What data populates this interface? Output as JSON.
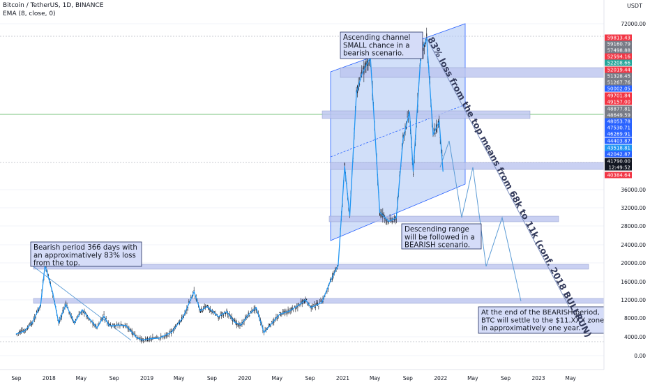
{
  "header": {
    "title": "Bitcoin / TetherUS, 1D, BINANCE",
    "indicator": "EMA (8, close, 0)",
    "currency": "USDT"
  },
  "colors": {
    "up": "#131722",
    "ema": "#2196f3",
    "channel_fill": "#b3c9f5",
    "channel_edge": "#2962ff",
    "zone_fill": "#bcc4ef",
    "annotation_fill": "#d5dcf8",
    "annotation_border": "#1e2b5c",
    "projection": "#5b9bd5",
    "green_line": "#4caf50",
    "axis_text": "#131722"
  },
  "chart_data": {
    "type": "line",
    "series": [
      {
        "x": [
          "2017-09-01",
          "2017-10-01",
          "2017-11-01",
          "2017-12-01",
          "2017-12-17",
          "2018-01-15",
          "2018-02-06",
          "2018-03-05",
          "2018-04-06",
          "2018-05-05",
          "2018-06-29",
          "2018-07-25",
          "2018-08-14",
          "2018-09-15",
          "2018-10-15",
          "2018-11-25",
          "2018-12-15",
          "2019-01-15",
          "2019-02-15",
          "2019-04-02",
          "2019-05-15",
          "2019-06-26",
          "2019-07-20",
          "2019-08-15",
          "2019-09-25",
          "2019-10-26",
          "2019-11-25",
          "2019-12-18",
          "2020-01-15",
          "2020-02-13",
          "2020-03-13",
          "2020-04-15",
          "2020-05-10",
          "2020-06-15",
          "2020-07-25",
          "2020-08-15",
          "2020-09-05",
          "2020-10-15",
          "2020-11-15",
          "2020-12-15",
          "2021-01-08",
          "2021-01-27",
          "2021-02-21",
          "2021-03-13",
          "2021-04-14",
          "2021-05-19",
          "2021-06-22",
          "2021-07-20",
          "2021-08-14",
          "2021-09-07",
          "2021-09-21",
          "2021-10-20",
          "2021-11-10",
          "2021-12-04",
          "2021-12-27",
          "2022-01-10"
        ],
        "y": [
          4600,
          5200,
          7100,
          11000,
          19500,
          13500,
          7000,
          11000,
          6900,
          9800,
          5900,
          8400,
          6300,
          6500,
          6400,
          3800,
          3300,
          3600,
          3700,
          4900,
          8000,
          13800,
          9600,
          10500,
          8300,
          9400,
          7100,
          6500,
          8700,
          10300,
          4900,
          7100,
          8800,
          9500,
          11000,
          12000,
          10300,
          11400,
          16000,
          19500,
          41000,
          30200,
          57000,
          61000,
          64800,
          31000,
          29000,
          29800,
          47000,
          52900,
          40000,
          66000,
          68800,
          48000,
          50800,
          40000
        ],
        "name": ""
      }
    ],
    "x_ticks": [
      "Sep",
      "2018",
      "May",
      "Sep",
      "2019",
      "May",
      "Sep",
      "2020",
      "May",
      "Sep",
      "2021",
      "May",
      "Sep",
      "2022",
      "May",
      "Sep",
      "2023",
      "May"
    ],
    "y_ticks": [
      "0.00",
      "4000.00",
      "8000.00",
      "12000.00",
      "16000.00",
      "20000.00",
      "24000.00",
      "28000.00",
      "32000.00",
      "36000.00",
      "72000.00"
    ],
    "ylim": [
      -1500,
      76500
    ],
    "price_labels": [
      {
        "text": "59813.43",
        "color": "#f23645"
      },
      {
        "text": "59160.79",
        "color": "#787b86"
      },
      {
        "text": "57498.88",
        "color": "#787b86"
      },
      {
        "text": "52594.16",
        "color": "#f23645"
      },
      {
        "text": "52208.66",
        "color": "#26a69a"
      },
      {
        "text": "52019.44",
        "color": "#f23645"
      },
      {
        "text": "51328.45",
        "color": "#787b86"
      },
      {
        "text": "51267.76",
        "color": "#787b86"
      },
      {
        "text": "50002.05",
        "color": "#2962ff"
      },
      {
        "text": "49701.84",
        "color": "#f23645"
      },
      {
        "text": "49157.00",
        "color": "#f23645"
      },
      {
        "text": "48877.81",
        "color": "#787b86"
      },
      {
        "text": "48649.59",
        "color": "#787b86"
      },
      {
        "text": "48053.78",
        "color": "#2962ff"
      },
      {
        "text": "47530.71",
        "color": "#2962ff"
      },
      {
        "text": "46269.91",
        "color": "#2962ff"
      },
      {
        "text": "44403.87",
        "color": "#2962ff"
      },
      {
        "text": "43518.81",
        "color": "#2196f3"
      },
      {
        "text": "42042.87",
        "color": "#2962ff"
      },
      {
        "text": "41790.00",
        "color": "#131722"
      },
      {
        "text": "12:49:52",
        "color": "#131722"
      },
      {
        "text": "40384.64",
        "color": "#f23645"
      }
    ],
    "annotations": [
      {
        "id": "bearish-period",
        "lines": [
          "Bearish period 366 days with",
          "an approximatively 83% loss",
          "from the top."
        ]
      },
      {
        "id": "ascending-channel",
        "lines": [
          "Ascending channel",
          "SMALL chance in a",
          "bearish scenario."
        ]
      },
      {
        "id": "descending-range",
        "lines": [
          "Descending range",
          "will be followed in a",
          "BEARISH scenario."
        ]
      },
      {
        "id": "end-bearish",
        "lines": [
          "At the end of the BEARISH period,",
          "BTC will settle to the $11.XXX zone",
          "in approximatively one year."
        ]
      }
    ],
    "rotated_note": "83% loss from the top means from 68k to 11k (conf. 2018 BULLRUN)"
  }
}
